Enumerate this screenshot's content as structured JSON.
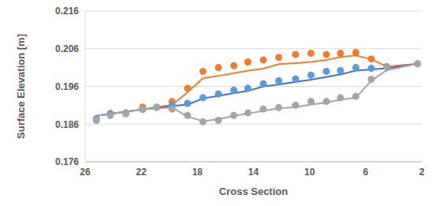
{
  "chart_data": {
    "type": "line",
    "x_label": "Cross Section",
    "y_label": "Surface Elevation [m]",
    "xlim": [
      26,
      2
    ],
    "xticks": [
      26,
      22,
      18,
      14,
      10,
      6,
      2
    ],
    "ylim": [
      0.176,
      0.216
    ],
    "yticks": [
      0.176,
      0.186,
      0.196,
      0.206,
      0.216
    ],
    "grid": true,
    "series": [
      {
        "type": "line",
        "line_style": "solid",
        "color": "#ED7D31",
        "x": [
          25.2,
          24.2,
          23.1,
          21.9,
          20.9,
          19.8,
          18.7,
          17.6,
          16.5,
          15.4,
          14.4,
          13.3,
          12.2,
          11.0,
          9.9,
          8.8,
          7.8,
          6.7,
          5.6,
          4.5,
          2.3
        ],
        "values": [
          0.1882,
          0.1887,
          0.1893,
          0.1899,
          0.1905,
          0.1911,
          0.1945,
          0.1982,
          0.1988,
          0.1995,
          0.2002,
          0.2007,
          0.2019,
          0.2022,
          0.2025,
          0.203,
          0.2038,
          0.2042,
          0.2032,
          0.2013,
          0.202
        ]
      },
      {
        "type": "line",
        "line_style": "solid",
        "color": "#4472C4",
        "x": [
          25.2,
          24.2,
          23.1,
          21.9,
          20.9,
          19.8,
          18.7,
          17.6,
          16.5,
          15.4,
          14.4,
          13.3,
          12.2,
          11.0,
          9.9,
          8.8,
          7.8,
          6.7,
          5.6,
          4.5,
          2.3
        ],
        "values": [
          0.1882,
          0.1887,
          0.1893,
          0.1899,
          0.1903,
          0.1908,
          0.1912,
          0.1928,
          0.1935,
          0.1942,
          0.1948,
          0.196,
          0.1965,
          0.1972,
          0.1978,
          0.1985,
          0.1992,
          0.2002,
          0.2005,
          0.2008,
          0.202
        ]
      },
      {
        "type": "line",
        "line_style": "solid",
        "color": "#A5A5A5",
        "x": [
          25.2,
          24.2,
          23.1,
          21.9,
          20.9,
          19.8,
          18.7,
          17.6,
          16.5,
          15.4,
          14.4,
          13.3,
          12.2,
          11.0,
          9.9,
          8.8,
          7.8,
          6.7,
          5.6,
          4.5,
          2.3
        ],
        "values": [
          0.1882,
          0.1887,
          0.1893,
          0.1899,
          0.1902,
          0.1904,
          0.188,
          0.1868,
          0.1873,
          0.1882,
          0.1888,
          0.1895,
          0.1902,
          0.1905,
          0.1912,
          0.1917,
          0.1925,
          0.193,
          0.1975,
          0.2003,
          0.202
        ]
      },
      {
        "type": "scatter",
        "marker": "circle",
        "color": "#ED7D31",
        "x": [
          21.9,
          19.8,
          18.7,
          17.6,
          16.5,
          15.4,
          14.4,
          13.3,
          12.2,
          11.0,
          9.9,
          8.8,
          7.8,
          6.7,
          5.6
        ],
        "values": [
          0.1905,
          0.192,
          0.1955,
          0.2,
          0.201,
          0.2015,
          0.2025,
          0.203,
          0.2037,
          0.2045,
          0.2048,
          0.2045,
          0.2048,
          0.205,
          0.2033
        ]
      },
      {
        "type": "scatter",
        "marker": "circle",
        "color": "#5B9BD5",
        "x": [
          25.2,
          24.2,
          23.1,
          21.9,
          20.9,
          19.8,
          18.7,
          17.6,
          16.5,
          15.4,
          14.4,
          13.3,
          12.2,
          11.0,
          9.9,
          8.8,
          7.8,
          6.7,
          5.6,
          4.5,
          2.3
        ],
        "values": [
          0.1874,
          0.1888,
          0.189,
          0.1899,
          0.1905,
          0.191,
          0.1915,
          0.193,
          0.194,
          0.195,
          0.1955,
          0.1967,
          0.1975,
          0.198,
          0.199,
          0.2,
          0.2002,
          0.201,
          0.2008,
          0.2012,
          0.202
        ]
      },
      {
        "type": "scatter",
        "marker": "circle",
        "color": "#A5A5A5",
        "x": [
          25.2,
          24.2,
          23.1,
          21.9,
          20.9,
          19.8,
          18.7,
          17.6,
          16.5,
          15.4,
          14.4,
          13.3,
          12.2,
          11.0,
          9.9,
          8.8,
          7.8,
          6.7,
          5.6,
          4.5,
          2.3
        ],
        "values": [
          0.187,
          0.1883,
          0.1887,
          0.19,
          0.1904,
          0.19,
          0.1883,
          0.1866,
          0.187,
          0.1883,
          0.189,
          0.19,
          0.1904,
          0.191,
          0.192,
          0.192,
          0.193,
          0.1934,
          0.1979,
          0.2013,
          0.202
        ]
      }
    ]
  }
}
